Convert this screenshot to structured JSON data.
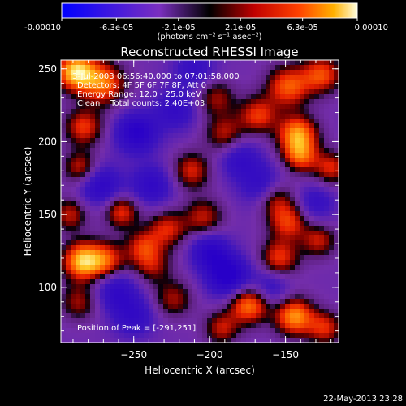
{
  "colorbar": {
    "tick_labels": [
      "-0.00010",
      "-6.3e-05",
      "-2.1e-05",
      "2.1e-05",
      "6.3e-05",
      "0.00010"
    ],
    "unit_label": "(photons cm⁻² s⁻¹ asec⁻²)",
    "min": -0.0001,
    "max": 0.0001
  },
  "footer": {
    "timestamp": "22-May-2013 23:28"
  },
  "chart_data": {
    "type": "heatmap",
    "title": "Reconstructed RHESSI Image",
    "xlabel": "Heliocentric X (arcsec)",
    "ylabel": "Heliocentric Y (arcsec)",
    "xlim": [
      -298,
      -115
    ],
    "ylim": [
      62,
      256
    ],
    "xticks": [
      -250,
      -200,
      -150
    ],
    "yticks": [
      100,
      150,
      200,
      250
    ],
    "annotations": [
      "3-Jul-2003 06:56:40.000 to 07:01:58.000",
      "Detectors: 4F 5F 6F 7F 8F, Att 0",
      "Energy Range: 12.0 - 25.0 keV",
      "Clean    Total counts: 2.40E+03"
    ],
    "peak_label": "Position of Peak = [-291,251]",
    "peak": {
      "x": -291,
      "y": 251
    },
    "colors": {
      "background": "#000000",
      "low": "#2a00c8",
      "mid": "#7d2ca8",
      "high": "#ff2a00",
      "peak": "#ffffc0"
    },
    "blobs": [
      {
        "x": -288,
        "y": 248,
        "amp": 1.0,
        "r": 9
      },
      {
        "x": -270,
        "y": 240,
        "amp": 0.7,
        "r": 10
      },
      {
        "x": -283,
        "y": 210,
        "amp": 0.55,
        "r": 9
      },
      {
        "x": -285,
        "y": 182,
        "amp": 0.5,
        "r": 8
      },
      {
        "x": -292,
        "y": 150,
        "amp": 0.45,
        "r": 8
      },
      {
        "x": -284,
        "y": 118,
        "amp": 0.9,
        "r": 9
      },
      {
        "x": -286,
        "y": 90,
        "amp": 0.4,
        "r": 9
      },
      {
        "x": -268,
        "y": 118,
        "amp": 0.6,
        "r": 9
      },
      {
        "x": -258,
        "y": 152,
        "amp": 0.55,
        "r": 8
      },
      {
        "x": -244,
        "y": 128,
        "amp": 0.45,
        "r": 8
      },
      {
        "x": -238,
        "y": 115,
        "amp": 0.4,
        "r": 9
      },
      {
        "x": -228,
        "y": 140,
        "amp": 0.5,
        "r": 9
      },
      {
        "x": -204,
        "y": 148,
        "amp": 0.45,
        "r": 9
      },
      {
        "x": -212,
        "y": 180,
        "amp": 0.5,
        "r": 9
      },
      {
        "x": -196,
        "y": 230,
        "amp": 0.4,
        "r": 9
      },
      {
        "x": -190,
        "y": 205,
        "amp": 0.45,
        "r": 9
      },
      {
        "x": -168,
        "y": 218,
        "amp": 0.55,
        "r": 9
      },
      {
        "x": -148,
        "y": 238,
        "amp": 0.65,
        "r": 10
      },
      {
        "x": -126,
        "y": 246,
        "amp": 0.6,
        "r": 9
      },
      {
        "x": -142,
        "y": 205,
        "amp": 0.8,
        "r": 9
      },
      {
        "x": -140,
        "y": 190,
        "amp": 0.6,
        "r": 8
      },
      {
        "x": -120,
        "y": 182,
        "amp": 0.5,
        "r": 8
      },
      {
        "x": -158,
        "y": 162,
        "amp": 0.6,
        "r": 9
      },
      {
        "x": -148,
        "y": 145,
        "amp": 0.55,
        "r": 9
      },
      {
        "x": -128,
        "y": 132,
        "amp": 0.45,
        "r": 8
      },
      {
        "x": -154,
        "y": 120,
        "amp": 0.55,
        "r": 9
      },
      {
        "x": -174,
        "y": 88,
        "amp": 0.75,
        "r": 9
      },
      {
        "x": -144,
        "y": 80,
        "amp": 0.8,
        "r": 9
      },
      {
        "x": -124,
        "y": 72,
        "amp": 0.5,
        "r": 8
      },
      {
        "x": -192,
        "y": 72,
        "amp": 0.45,
        "r": 8
      },
      {
        "x": -224,
        "y": 92,
        "amp": 0.4,
        "r": 9
      },
      {
        "x": -248,
        "y": 206,
        "amp": -0.6,
        "r": 10
      },
      {
        "x": -222,
        "y": 222,
        "amp": -0.4,
        "r": 10
      },
      {
        "x": -272,
        "y": 170,
        "amp": -0.5,
        "r": 10
      },
      {
        "x": -238,
        "y": 170,
        "amp": -0.45,
        "r": 10
      },
      {
        "x": -188,
        "y": 108,
        "amp": -0.7,
        "r": 10
      },
      {
        "x": -200,
        "y": 125,
        "amp": -0.5,
        "r": 9
      },
      {
        "x": -164,
        "y": 168,
        "amp": -0.55,
        "r": 10
      },
      {
        "x": -180,
        "y": 188,
        "amp": -0.4,
        "r": 10
      },
      {
        "x": -262,
        "y": 98,
        "amp": -0.45,
        "r": 10
      },
      {
        "x": -250,
        "y": 80,
        "amp": -0.4,
        "r": 10
      },
      {
        "x": -130,
        "y": 158,
        "amp": -0.35,
        "r": 9
      },
      {
        "x": -160,
        "y": 100,
        "amp": -0.35,
        "r": 9
      },
      {
        "x": -210,
        "y": 250,
        "amp": -0.35,
        "r": 10
      }
    ]
  }
}
